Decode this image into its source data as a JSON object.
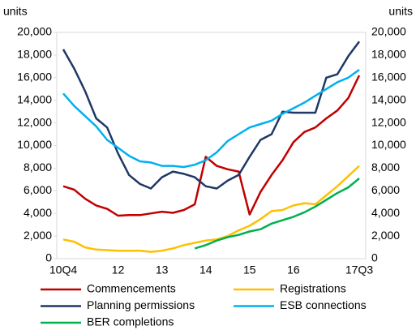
{
  "chart_data": {
    "type": "line",
    "y_label": "units",
    "categories": [
      "10Q4",
      null,
      null,
      null,
      null,
      "12",
      null,
      null,
      null,
      "13",
      null,
      null,
      null,
      "14",
      null,
      null,
      null,
      "15",
      null,
      null,
      null,
      "16",
      null,
      null,
      null,
      null,
      null,
      "17Q3"
    ],
    "ylim": [
      0,
      20000
    ],
    "yticks": [
      0,
      {
        "value": 2000,
        "label": "2,000"
      },
      {
        "value": 4000,
        "label": "4,000"
      },
      {
        "value": 6000,
        "label": "6,000"
      },
      {
        "value": 8000,
        "label": "8,000"
      },
      {
        "value": 10000,
        "label": "10,000"
      },
      {
        "value": 12000,
        "label": "12,000"
      },
      {
        "value": 14000,
        "label": "14,000"
      },
      {
        "value": 16000,
        "label": "16,000"
      },
      {
        "value": 18000,
        "label": "18,000"
      },
      {
        "value": 20000,
        "label": "20,000"
      }
    ],
    "series": [
      {
        "name": "Commencements",
        "color": "#c00000",
        "values": [
          6400,
          6100,
          5300,
          4700,
          4400,
          3800,
          3850,
          3850,
          4000,
          4150,
          4050,
          4300,
          4800,
          9000,
          8200,
          7900,
          7700,
          3900,
          5900,
          7400,
          8700,
          10300,
          11200,
          11600,
          12400,
          13100,
          14200,
          16200
        ]
      },
      {
        "name": "Registrations",
        "color": "#ffc000",
        "values": [
          1700,
          1500,
          1000,
          800,
          750,
          700,
          700,
          700,
          600,
          700,
          900,
          1200,
          1400,
          1600,
          1700,
          2000,
          2500,
          2900,
          3500,
          4200,
          4300,
          4700,
          4900,
          4800,
          5600,
          6400,
          7300,
          8200
        ]
      },
      {
        "name": "Planning permissions",
        "color": "#1f3864",
        "values": [
          18500,
          16800,
          14800,
          12400,
          11600,
          9300,
          7400,
          6600,
          6200,
          7200,
          7700,
          7500,
          7200,
          6400,
          6200,
          6900,
          7400,
          9000,
          10500,
          11000,
          13000,
          12900,
          12900,
          12900,
          16000,
          16300,
          17900,
          19200
        ]
      },
      {
        "name": "ESB connections",
        "color": "#00b0f0",
        "values": [
          14600,
          13500,
          12600,
          11700,
          10500,
          9800,
          9100,
          8600,
          8500,
          8200,
          8200,
          8100,
          8300,
          8700,
          9400,
          10400,
          11000,
          11600,
          11900,
          12200,
          12800,
          13300,
          13800,
          14400,
          15000,
          15600,
          16000,
          16700
        ]
      },
      {
        "name": "BER completions",
        "color": "#00b050",
        "values": [
          null,
          null,
          null,
          null,
          null,
          null,
          null,
          null,
          null,
          null,
          null,
          null,
          900,
          1200,
          1600,
          1900,
          2100,
          2400,
          2600,
          3100,
          3400,
          3700,
          4100,
          4600,
          5200,
          5800,
          6300,
          7100
        ]
      }
    ]
  }
}
